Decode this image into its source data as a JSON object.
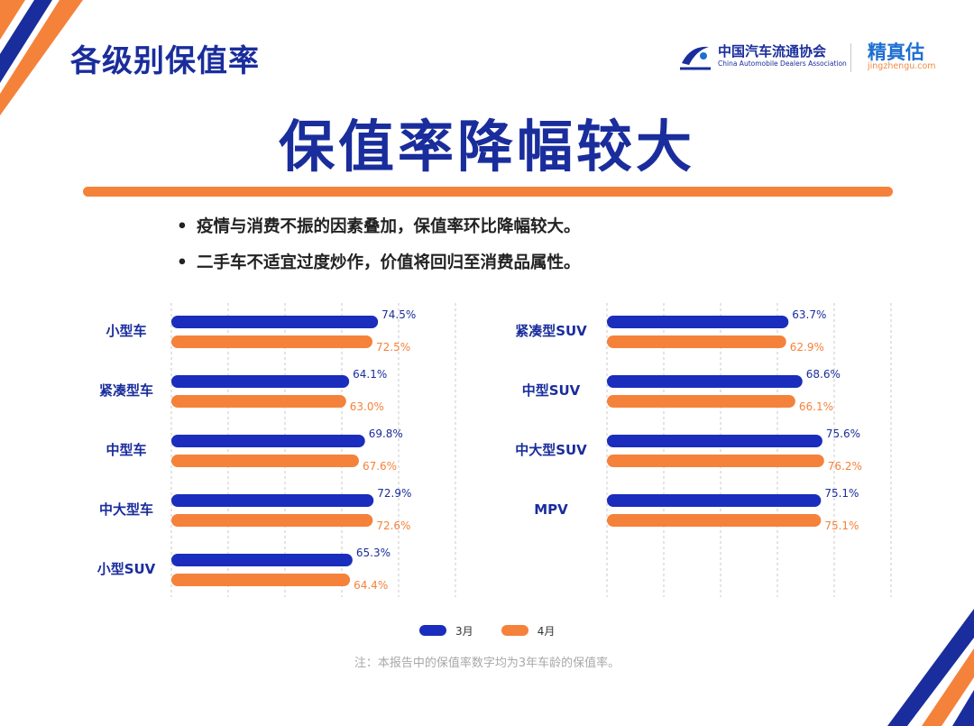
{
  "page_title": "各级别保值率",
  "logos": {
    "association_cn": "中国汽车流通协会",
    "association_en": "China Automobile Dealers Association",
    "brand_cn": "精真估",
    "brand_url": "jingzhengu.com"
  },
  "heading": "保值率降幅较大",
  "bullets": [
    "疫情与消费不振的因素叠加，保值率环比降幅较大。",
    "二手车不适宜过度炒作，价值将回归至消费品属性。"
  ],
  "legend": {
    "march": "3月",
    "april": "4月"
  },
  "footnote": "注：本报告中的保值率数字均为3年车龄的保值率。",
  "colors": {
    "march": "#1a2dbc",
    "april": "#f5823a",
    "title": "#1a2d9c",
    "accent_bar": "#f5823a",
    "corner_blue": "#1a2d9c",
    "corner_orange": "#f5823a"
  },
  "chart_data": [
    {
      "type": "bar",
      "orientation": "horizontal",
      "categories": [
        "小型车",
        "紧凑型车",
        "中型车",
        "中大型车",
        "小型SUV"
      ],
      "series": [
        {
          "name": "3月",
          "values": [
            74.5,
            64.1,
            69.8,
            72.9,
            65.3
          ]
        },
        {
          "name": "4月",
          "values": [
            72.5,
            63.0,
            67.6,
            72.6,
            64.4
          ]
        }
      ],
      "value_labels": {
        "3月": [
          "74.5%",
          "64.1%",
          "69.8%",
          "72.9%",
          "65.3%"
        ],
        "4月": [
          "72.5%",
          "63.0%",
          "67.6%",
          "72.6%",
          "64.4%"
        ]
      },
      "unit": "%",
      "grid": true
    },
    {
      "type": "bar",
      "orientation": "horizontal",
      "categories": [
        "紧凑型SUV",
        "中型SUV",
        "中大型SUV",
        "MPV"
      ],
      "series": [
        {
          "name": "3月",
          "values": [
            63.7,
            68.6,
            75.6,
            75.1
          ]
        },
        {
          "name": "4月",
          "values": [
            62.9,
            66.1,
            76.2,
            75.1
          ]
        }
      ],
      "value_labels": {
        "3月": [
          "63.7%",
          "68.6%",
          "75.6%",
          "75.1%"
        ],
        "4月": [
          "62.9%",
          "66.1%",
          "76.2%",
          "75.1%"
        ]
      },
      "unit": "%",
      "grid": true
    }
  ]
}
